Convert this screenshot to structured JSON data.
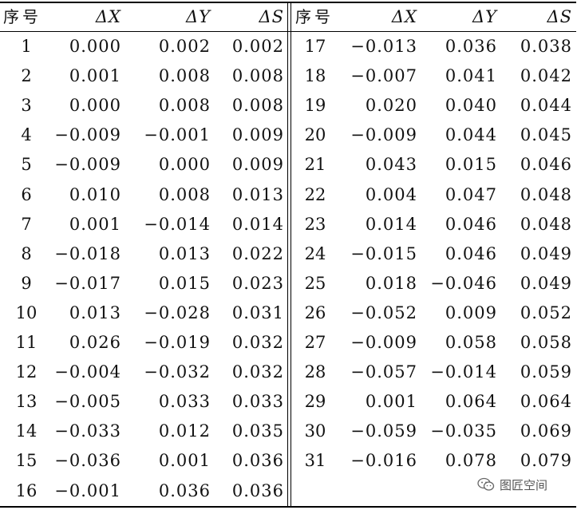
{
  "table": {
    "headers": [
      "序号",
      "ΔX",
      "ΔY",
      "ΔS"
    ],
    "rows": [
      [
        "1",
        "0.000",
        "0.002",
        "0.002"
      ],
      [
        "2",
        "0.001",
        "0.008",
        "0.008"
      ],
      [
        "3",
        "0.000",
        "0.008",
        "0.008"
      ],
      [
        "4",
        "−0.009",
        "−0.001",
        "0.009"
      ],
      [
        "5",
        "−0.009",
        "0.000",
        "0.009"
      ],
      [
        "6",
        "0.010",
        "0.008",
        "0.013"
      ],
      [
        "7",
        "0.001",
        "−0.014",
        "0.014"
      ],
      [
        "8",
        "−0.018",
        "0.013",
        "0.022"
      ],
      [
        "9",
        "−0.017",
        "0.015",
        "0.023"
      ],
      [
        "10",
        "0.013",
        "−0.028",
        "0.031"
      ],
      [
        "11",
        "0.026",
        "−0.019",
        "0.032"
      ],
      [
        "12",
        "−0.004",
        "−0.032",
        "0.032"
      ],
      [
        "13",
        "−0.005",
        "0.033",
        "0.033"
      ],
      [
        "14",
        "−0.033",
        "0.012",
        "0.035"
      ],
      [
        "15",
        "−0.036",
        "0.001",
        "0.036"
      ],
      [
        "16",
        "−0.001",
        "0.036",
        "0.036"
      ],
      [
        "17",
        "−0.013",
        "0.036",
        "0.038"
      ],
      [
        "18",
        "−0.007",
        "0.041",
        "0.042"
      ],
      [
        "19",
        "0.020",
        "0.040",
        "0.044"
      ],
      [
        "20",
        "−0.009",
        "0.044",
        "0.045"
      ],
      [
        "21",
        "0.043",
        "0.015",
        "0.046"
      ],
      [
        "22",
        "0.004",
        "0.047",
        "0.048"
      ],
      [
        "23",
        "0.014",
        "0.046",
        "0.048"
      ],
      [
        "24",
        "−0.015",
        "0.046",
        "0.049"
      ],
      [
        "25",
        "0.018",
        "−0.046",
        "0.049"
      ],
      [
        "26",
        "−0.052",
        "0.009",
        "0.052"
      ],
      [
        "27",
        "−0.009",
        "0.058",
        "0.058"
      ],
      [
        "28",
        "−0.057",
        "−0.014",
        "0.059"
      ],
      [
        "29",
        "0.001",
        "0.064",
        "0.064"
      ],
      [
        "30",
        "−0.059",
        "−0.035",
        "0.069"
      ],
      [
        "31",
        "−0.016",
        "0.078",
        "0.079"
      ]
    ]
  },
  "watermark": {
    "text": "图匠空间",
    "icon": "wechat-icon"
  }
}
